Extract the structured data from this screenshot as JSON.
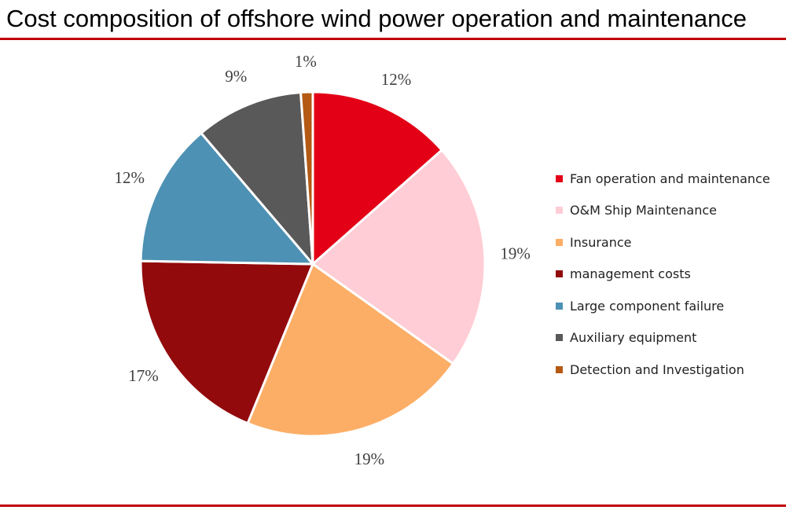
{
  "header": {
    "title": "Cost composition of offshore wind power operation and maintenance"
  },
  "chart_data": {
    "type": "pie",
    "title": "Cost composition of offshore wind power operation and maintenance",
    "legend_position": "right",
    "slices": [
      {
        "name": "Fan operation and maintenance",
        "value": 12,
        "label": "12%",
        "color": "#e30016"
      },
      {
        "name": "O&M Ship Maintenance",
        "value": 19,
        "label": "19%",
        "color": "#ffcdd5"
      },
      {
        "name": "Insurance",
        "value": 19,
        "label": "19%",
        "color": "#fcae67"
      },
      {
        "name": "management costs",
        "value": 17,
        "label": "17%",
        "color": "#920a0c"
      },
      {
        "name": "Large component failure",
        "value": 12,
        "label": "12%",
        "color": "#4d91b4"
      },
      {
        "name": "Auxiliary equipment",
        "value": 9,
        "label": "9%",
        "color": "#595959"
      },
      {
        "name": "Detection and Investigation",
        "value": 1,
        "label": "1%",
        "color": "#b45a14"
      }
    ]
  }
}
